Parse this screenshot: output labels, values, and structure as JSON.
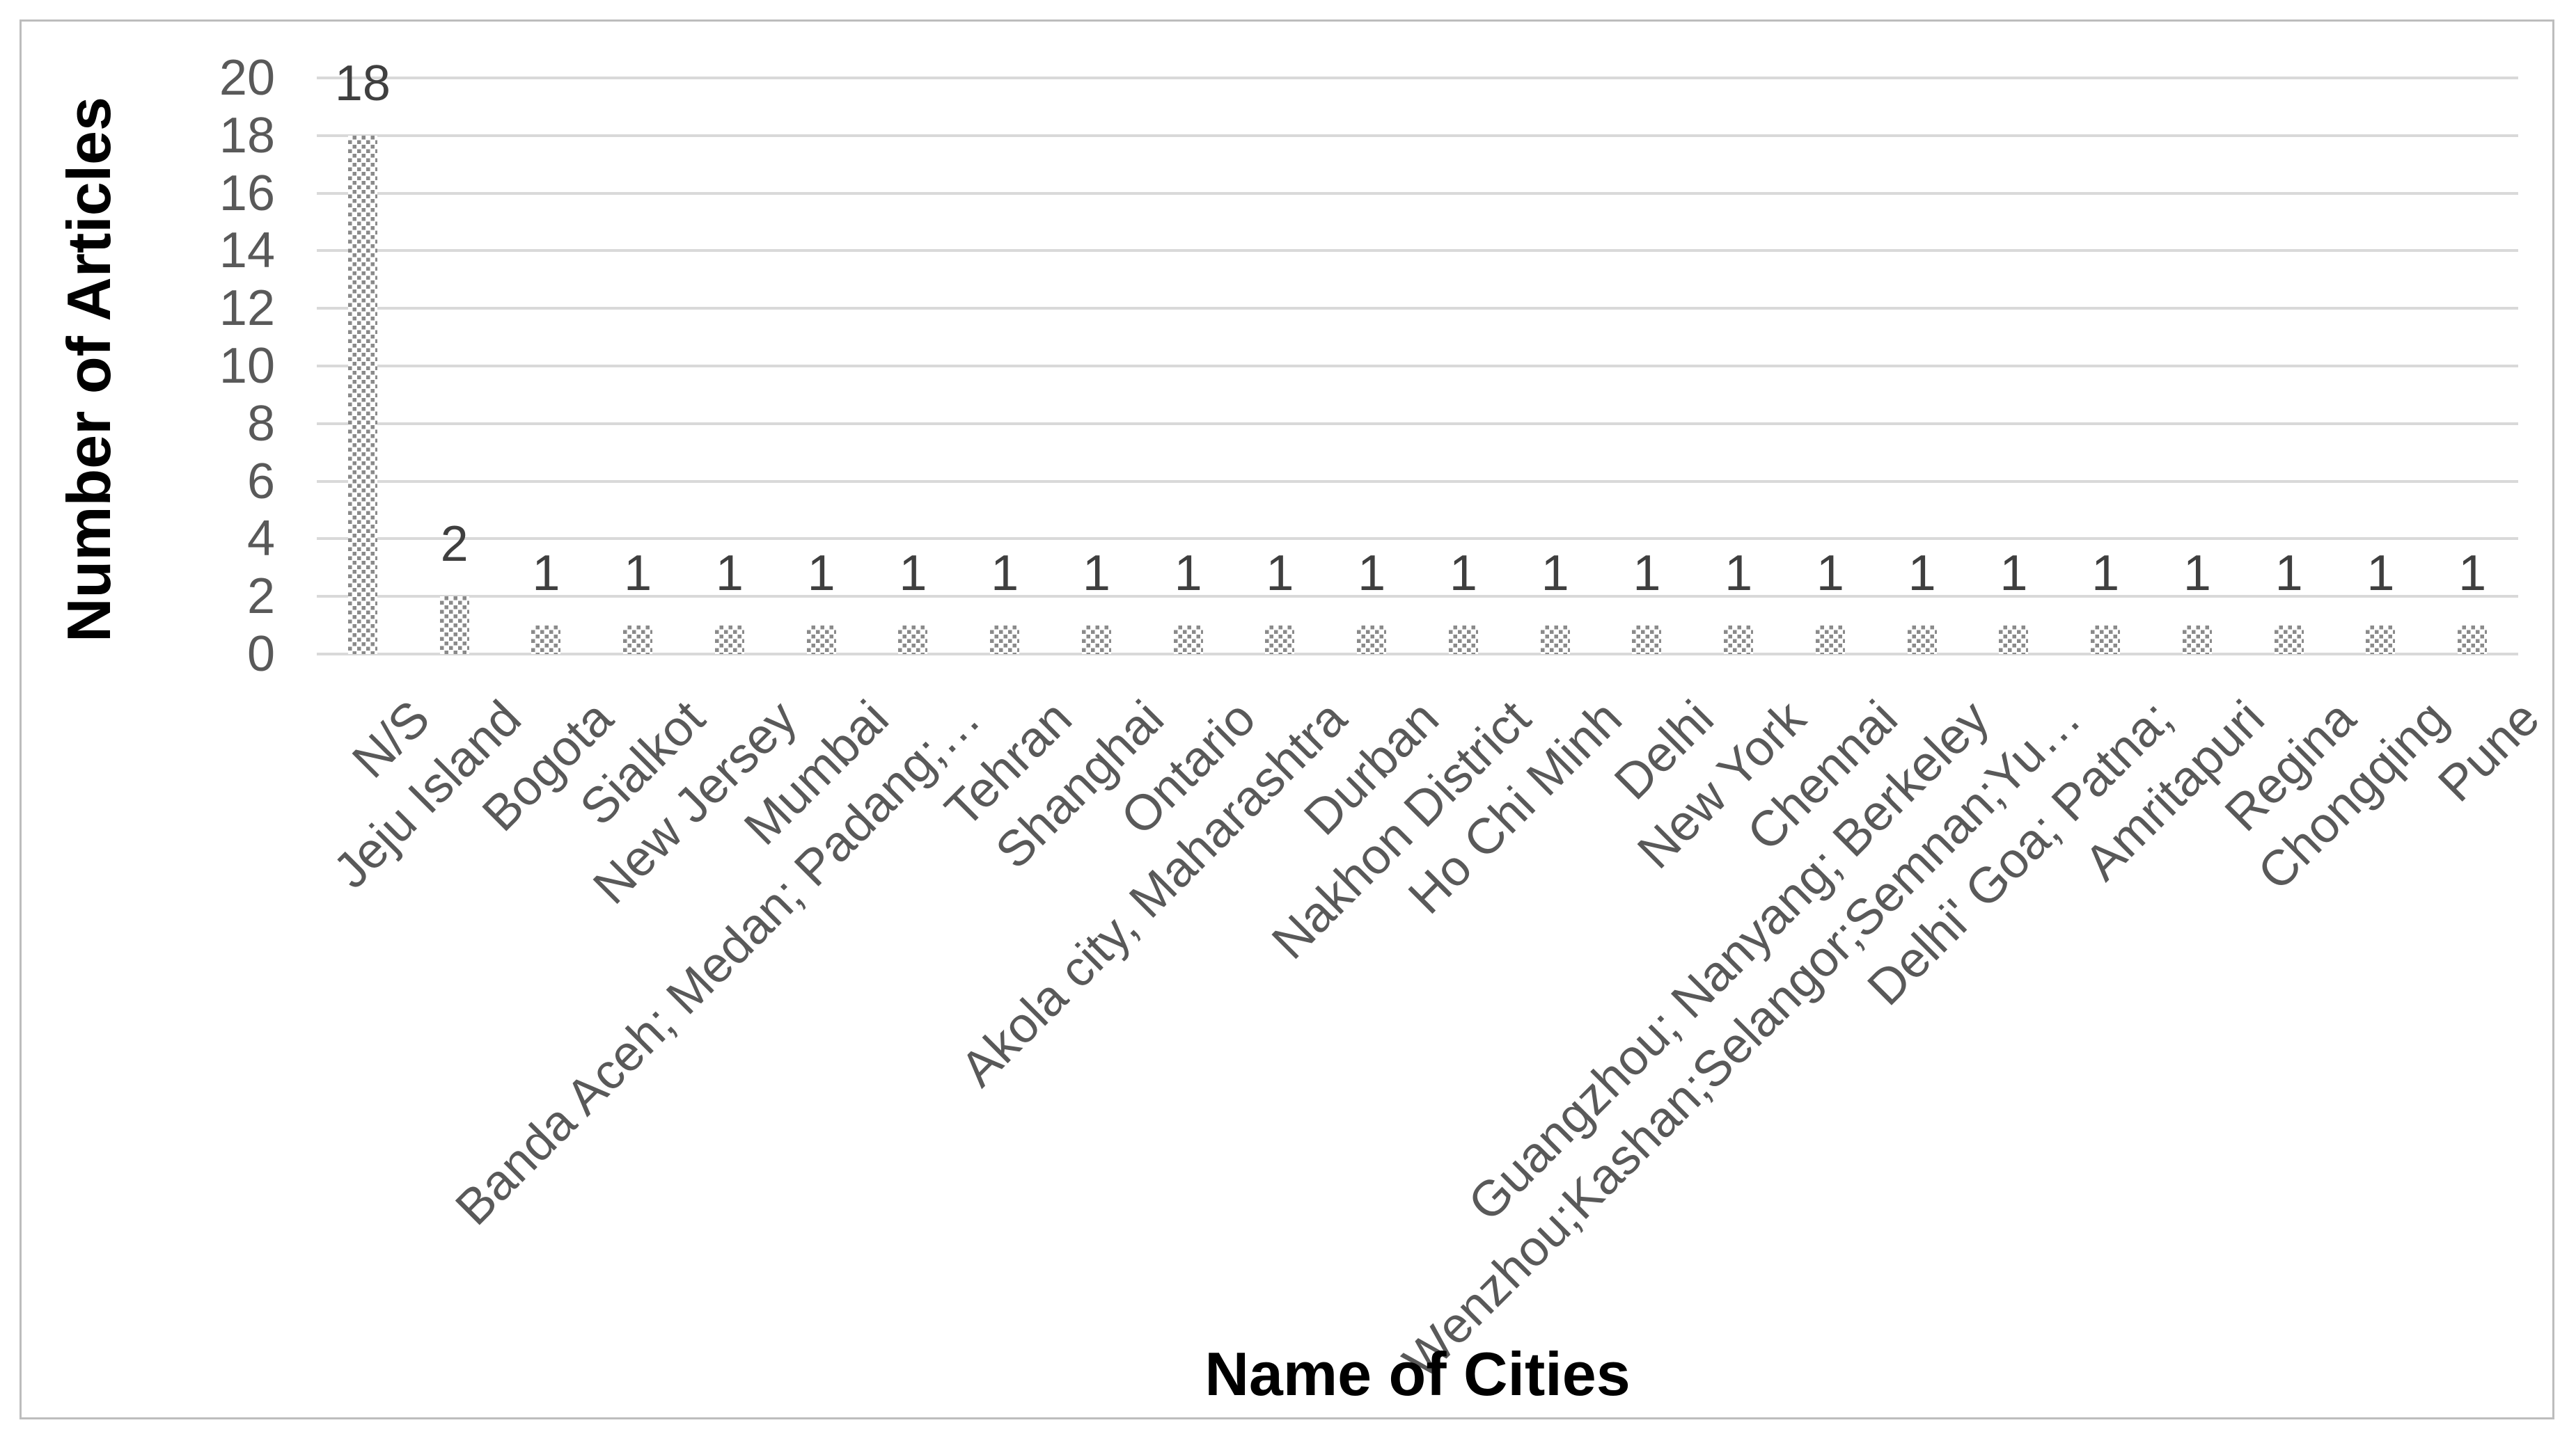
{
  "chart_data": {
    "type": "bar",
    "title": "",
    "xlabel": "Name of Cities",
    "ylabel": "Number of Articles",
    "categories": [
      "N/S",
      "Jeju Island",
      "Bogota",
      "Sialkot",
      "New Jersey",
      "Mumbai",
      "Banda Aceh; Medan; Padang;…",
      "Tehran",
      "Shanghai",
      "Ontario",
      "Akola city, Maharashtra",
      "Durban",
      "Nakhon District",
      "Ho Chi Minh",
      "Delhi",
      "New York",
      "Chennai",
      "Guangzhou; Nanyang; Berkeley",
      "Wenzhou;Kashan;Selangor;Semnan;Yu…",
      "Delhi' Goa; Patna;",
      "Amritapuri",
      "Regina",
      "Chongqing",
      "Pune"
    ],
    "values": [
      18,
      2,
      1,
      1,
      1,
      1,
      1,
      1,
      1,
      1,
      1,
      1,
      1,
      1,
      1,
      1,
      1,
      1,
      1,
      1,
      1,
      1,
      1,
      1
    ],
    "data_labels": [
      "18",
      "2",
      "1",
      "1",
      "1",
      "1",
      "1",
      "1",
      "1",
      "1",
      "1",
      "1",
      "1",
      "1",
      "1",
      "1",
      "1",
      "1",
      "1",
      "1",
      "1",
      "1",
      "1",
      "1"
    ],
    "y_ticks": [
      0,
      2,
      4,
      6,
      8,
      10,
      12,
      14,
      16,
      18,
      20
    ],
    "ylim": [
      0,
      20
    ],
    "grid": "horizontal",
    "legend": "none",
    "bar_style": "gray checkerboard pattern",
    "colors": {
      "bar_pattern_gray": "#8a8a8a",
      "gridline": "#d9d9d9",
      "tick_label": "#595959",
      "category_label": "#595959",
      "data_label": "#3f3f3f",
      "axis_title": "#000000",
      "frame_border": "#bdbdbd"
    }
  }
}
